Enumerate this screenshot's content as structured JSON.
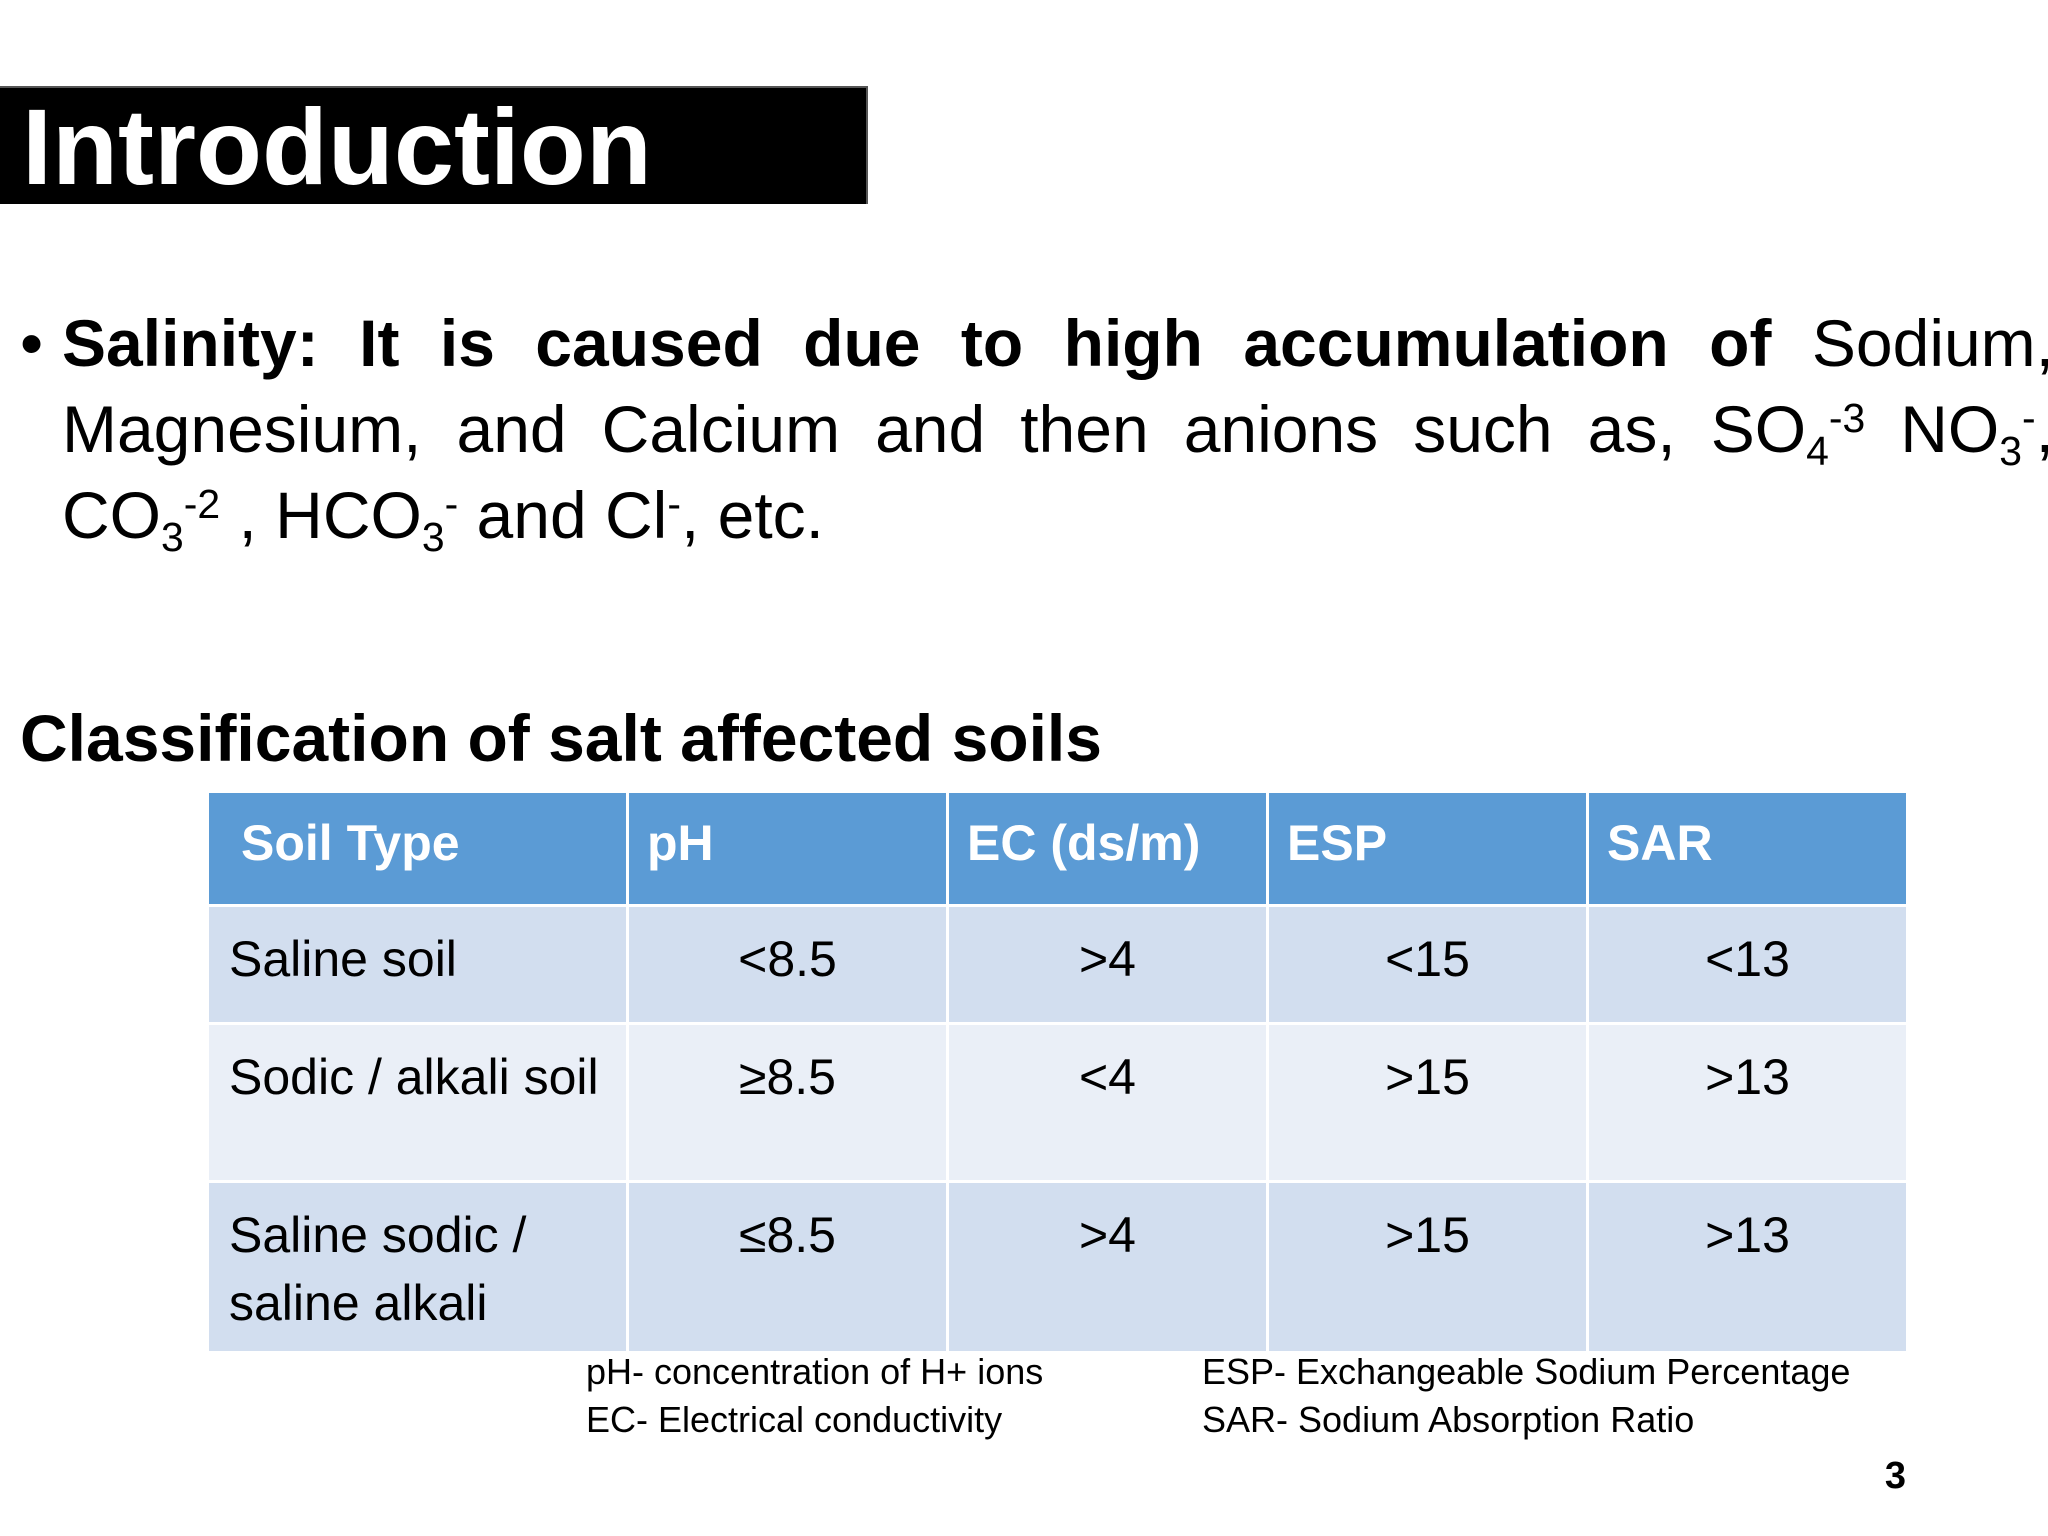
{
  "title": "Introduction",
  "bullet": {
    "bold_lead": "Salinity: It is caused due to high accumulation of",
    "text_1": " Sodium, Magnesium, and Calcium and then anions such as, SO",
    "so4_sub": "4",
    "so4_sup": "-3",
    "text_2": " NO",
    "no3_sub": "3",
    "no3_sup": "-",
    "text_3": ", CO",
    "co3_sub": "3",
    "co3_sup": "-2",
    "text_4": " , HCO",
    "hco3_sub": "3",
    "hco3_sup": "-",
    "text_5": " and Cl",
    "cl_sup": "-",
    "text_6": ", etc."
  },
  "section_heading": "Classification of salt affected soils",
  "table": {
    "headers": [
      "Soil Type",
      "pH",
      "EC (ds/m)",
      "ESP",
      "SAR"
    ],
    "rows": [
      [
        "Saline soil",
        "<8.5",
        ">4",
        "<15",
        "<13"
      ],
      [
        "Sodic / alkali soil",
        "≥8.5",
        "<4",
        ">15",
        ">13"
      ],
      [
        "Saline  sodic / saline alkali",
        "≤8.5",
        ">4",
        ">15",
        ">13"
      ]
    ]
  },
  "legend": {
    "ph": "pH- concentration of H+ ions",
    "ec": "EC- Electrical conductivity",
    "esp": "ESP- Exchangeable Sodium Percentage",
    "sar": "SAR- Sodium Absorption Ratio"
  },
  "page_number": "3",
  "colors": {
    "title_bg": "#000000",
    "header_bg": "#5b9bd5",
    "row_dark": "#d2deef",
    "row_light": "#eaeff7"
  }
}
